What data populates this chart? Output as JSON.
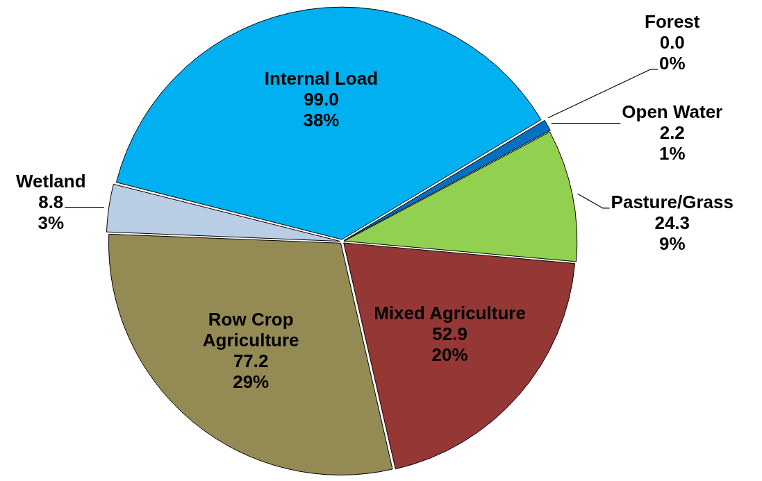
{
  "chart_data": {
    "type": "pie",
    "categories": [
      "Forest",
      "Open Water",
      "Pasture/Grass",
      "Mixed Agriculture",
      "Row Crop Agriculture",
      "Wetland",
      "Internal Load"
    ],
    "values": [
      0.0,
      2.2,
      24.3,
      52.9,
      77.2,
      8.8,
      99.0
    ],
    "colors": [
      null,
      "#0070c0",
      "#92d050",
      "#953735",
      "#948a54",
      "#b9cde5",
      "#00b0f0"
    ],
    "value_labels": [
      "0.0\n0%",
      "2.2\n1%",
      "24.3\n9%",
      "52.9\n20%",
      "77.2\n29%",
      "8.8\n3%",
      "99.0\n38%"
    ],
    "legend": false
  }
}
